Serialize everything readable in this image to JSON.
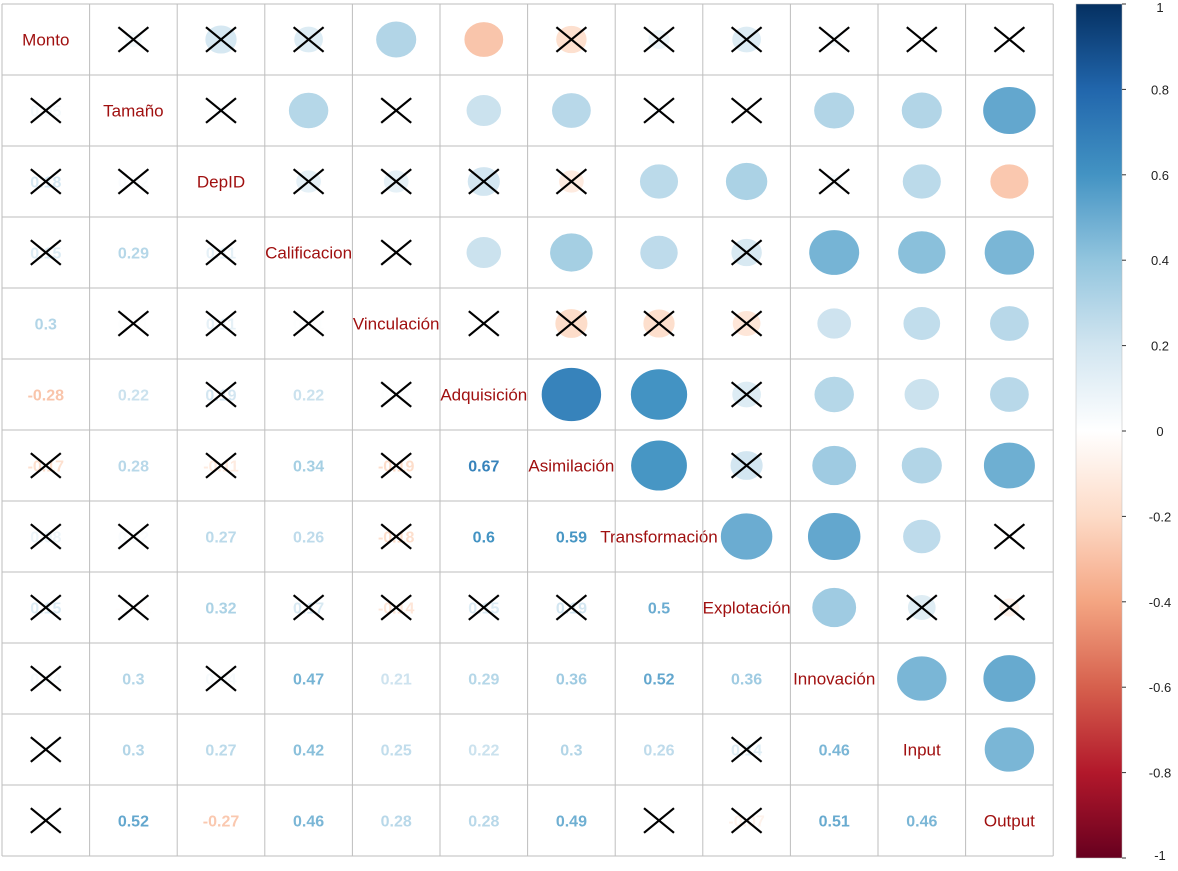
{
  "chart_data": {
    "type": "heatmap",
    "subtype": "correlation-matrix",
    "variables": [
      "Monto",
      "Tamaño",
      "DepID",
      "Calificacion",
      "Vinculación",
      "Adquisición",
      "Asimilación",
      "Transformación",
      "Explotación",
      "Innovación",
      "Input",
      "Output"
    ],
    "upper_method": "circle",
    "lower_method": "number",
    "insignificant_marker": "cross",
    "values": [
      [
        1.0,
        0.05,
        0.18,
        0.15,
        0.3,
        -0.28,
        -0.17,
        0.08,
        0.15,
        0.04,
        0.01,
        0.01
      ],
      [
        0.05,
        1.0,
        0.02,
        0.29,
        0.01,
        0.22,
        0.28,
        0.02,
        -0.01,
        0.3,
        0.3,
        0.52
      ],
      [
        0.18,
        0.02,
        1.0,
        0.11,
        0.11,
        0.19,
        -0.11,
        0.27,
        0.32,
        0.04,
        0.27,
        -0.27
      ],
      [
        0.15,
        0.29,
        0.11,
        1.0,
        0.01,
        0.22,
        0.34,
        0.26,
        0.17,
        0.47,
        0.42,
        0.46
      ],
      [
        0.3,
        0.01,
        0.11,
        0.01,
        1.0,
        0.01,
        -0.19,
        -0.18,
        -0.14,
        0.21,
        0.25,
        0.28
      ],
      [
        -0.28,
        0.22,
        0.19,
        0.22,
        0.01,
        1.0,
        0.67,
        0.6,
        0.15,
        0.29,
        0.22,
        0.28
      ],
      [
        -0.17,
        0.28,
        -0.11,
        0.34,
        -0.19,
        0.67,
        1.0,
        0.59,
        0.19,
        0.36,
        0.3,
        0.49
      ],
      [
        0.08,
        0.02,
        0.27,
        0.26,
        -0.18,
        0.6,
        0.59,
        1.0,
        0.5,
        0.52,
        0.26,
        0.01
      ],
      [
        0.15,
        -0.01,
        0.32,
        0.17,
        -0.14,
        0.15,
        0.19,
        0.5,
        1.0,
        0.36,
        0.14,
        -0.07
      ],
      [
        0.04,
        0.3,
        0.04,
        0.47,
        0.21,
        0.29,
        0.36,
        0.52,
        0.36,
        1.0,
        0.46,
        0.51
      ],
      [
        0.01,
        0.3,
        0.27,
        0.42,
        0.25,
        0.22,
        0.3,
        0.26,
        0.14,
        0.46,
        1.0,
        0.46
      ],
      [
        0.01,
        0.52,
        -0.27,
        0.46,
        0.28,
        0.28,
        0.49,
        0.01,
        -0.07,
        0.51,
        0.46,
        1.0
      ]
    ],
    "insignificant": [
      [
        false,
        true,
        true,
        true,
        false,
        false,
        true,
        true,
        true,
        true,
        true,
        true
      ],
      [
        true,
        false,
        true,
        false,
        true,
        false,
        false,
        true,
        true,
        false,
        false,
        false
      ],
      [
        true,
        true,
        false,
        true,
        true,
        true,
        true,
        false,
        false,
        true,
        false,
        false
      ],
      [
        true,
        false,
        true,
        false,
        true,
        false,
        false,
        false,
        true,
        false,
        false,
        false
      ],
      [
        false,
        true,
        true,
        true,
        false,
        true,
        true,
        true,
        true,
        false,
        false,
        false
      ],
      [
        false,
        false,
        true,
        false,
        true,
        false,
        false,
        false,
        true,
        false,
        false,
        false
      ],
      [
        true,
        false,
        true,
        false,
        true,
        false,
        false,
        false,
        true,
        false,
        false,
        false
      ],
      [
        true,
        true,
        false,
        false,
        true,
        false,
        false,
        false,
        false,
        false,
        false,
        true
      ],
      [
        true,
        true,
        false,
        true,
        true,
        true,
        true,
        false,
        false,
        false,
        true,
        true
      ],
      [
        true,
        false,
        true,
        false,
        false,
        false,
        false,
        false,
        false,
        false,
        false,
        false
      ],
      [
        true,
        false,
        false,
        false,
        false,
        false,
        false,
        false,
        true,
        false,
        false,
        false
      ],
      [
        true,
        false,
        false,
        false,
        false,
        false,
        false,
        true,
        true,
        false,
        false,
        false
      ]
    ],
    "colorbar": {
      "range": [
        -1,
        1
      ],
      "ticks": [
        "1",
        "0.8",
        "0.6",
        "0.4",
        "0.2",
        "0",
        "-0.2",
        "-0.4",
        "-0.6",
        "-0.8",
        "-1"
      ],
      "palette": [
        "#67001F",
        "#B2182B",
        "#D6604D",
        "#F4A582",
        "#FDDBC7",
        "#FFFFFF",
        "#D1E5F0",
        "#92C5DE",
        "#4393C3",
        "#2166AC",
        "#053061"
      ]
    },
    "label_color": "#A01010",
    "grid_color": "#BEBEBE",
    "grid": true,
    "legend": "right"
  }
}
